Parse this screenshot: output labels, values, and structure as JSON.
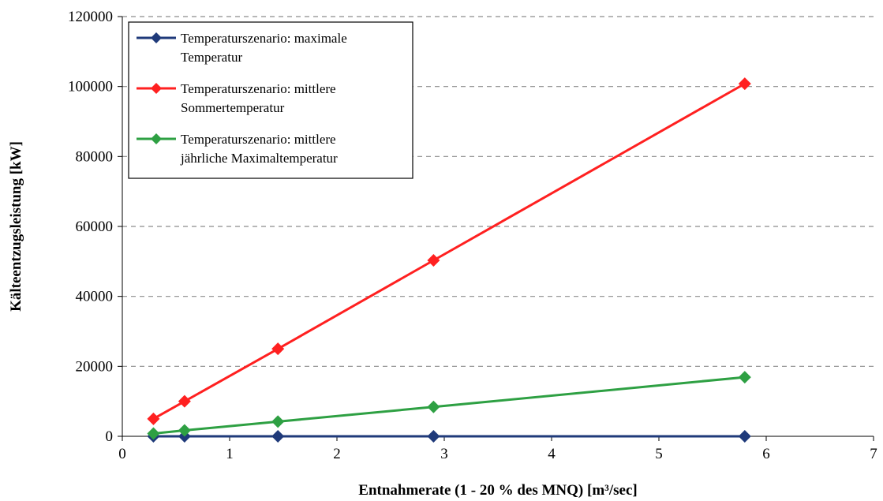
{
  "chart_data": {
    "type": "line",
    "title": "",
    "xlabel": "Entnahmerate (1 - 20 % des MNQ) [m³/sec]",
    "ylabel": "Kälteentzugsleistung [kW]",
    "xlim": [
      0,
      7
    ],
    "ylim": [
      0,
      120000
    ],
    "x_ticks": [
      "0",
      "1",
      "2",
      "3",
      "4",
      "5",
      "6",
      "7"
    ],
    "y_ticks": [
      "0",
      "20000",
      "40000",
      "60000",
      "80000",
      "100000",
      "120000"
    ],
    "grid": "horizontal-dashed",
    "legend_position": "top-left",
    "series": [
      {
        "name": "Temperaturszenario: maximale Temperatur",
        "legend_lines": [
          "Temperaturszenario: maximale",
          "Temperatur"
        ],
        "color": "#1F3A7A",
        "x": [
          0.29,
          0.58,
          1.45,
          2.9,
          5.8
        ],
        "y": [
          0,
          0,
          0,
          0,
          0
        ]
      },
      {
        "name": "Temperaturszenario: mittlere Sommertemperatur",
        "legend_lines": [
          "Temperaturszenario: mittlere",
          "Sommertemperatur"
        ],
        "color": "#FF2020",
        "x": [
          0.29,
          0.58,
          1.45,
          2.9,
          5.8
        ],
        "y": [
          5000,
          10000,
          25000,
          50300,
          100800
        ]
      },
      {
        "name": "Temperaturszenario: mittlere jährliche Maximaltemperatur",
        "legend_lines": [
          "Temperaturszenario: mittlere",
          "jährliche Maximaltemperatur"
        ],
        "color": "#2EA043",
        "x": [
          0.29,
          0.58,
          1.45,
          2.9,
          5.8
        ],
        "y": [
          800,
          1700,
          4200,
          8400,
          16900
        ]
      }
    ]
  }
}
